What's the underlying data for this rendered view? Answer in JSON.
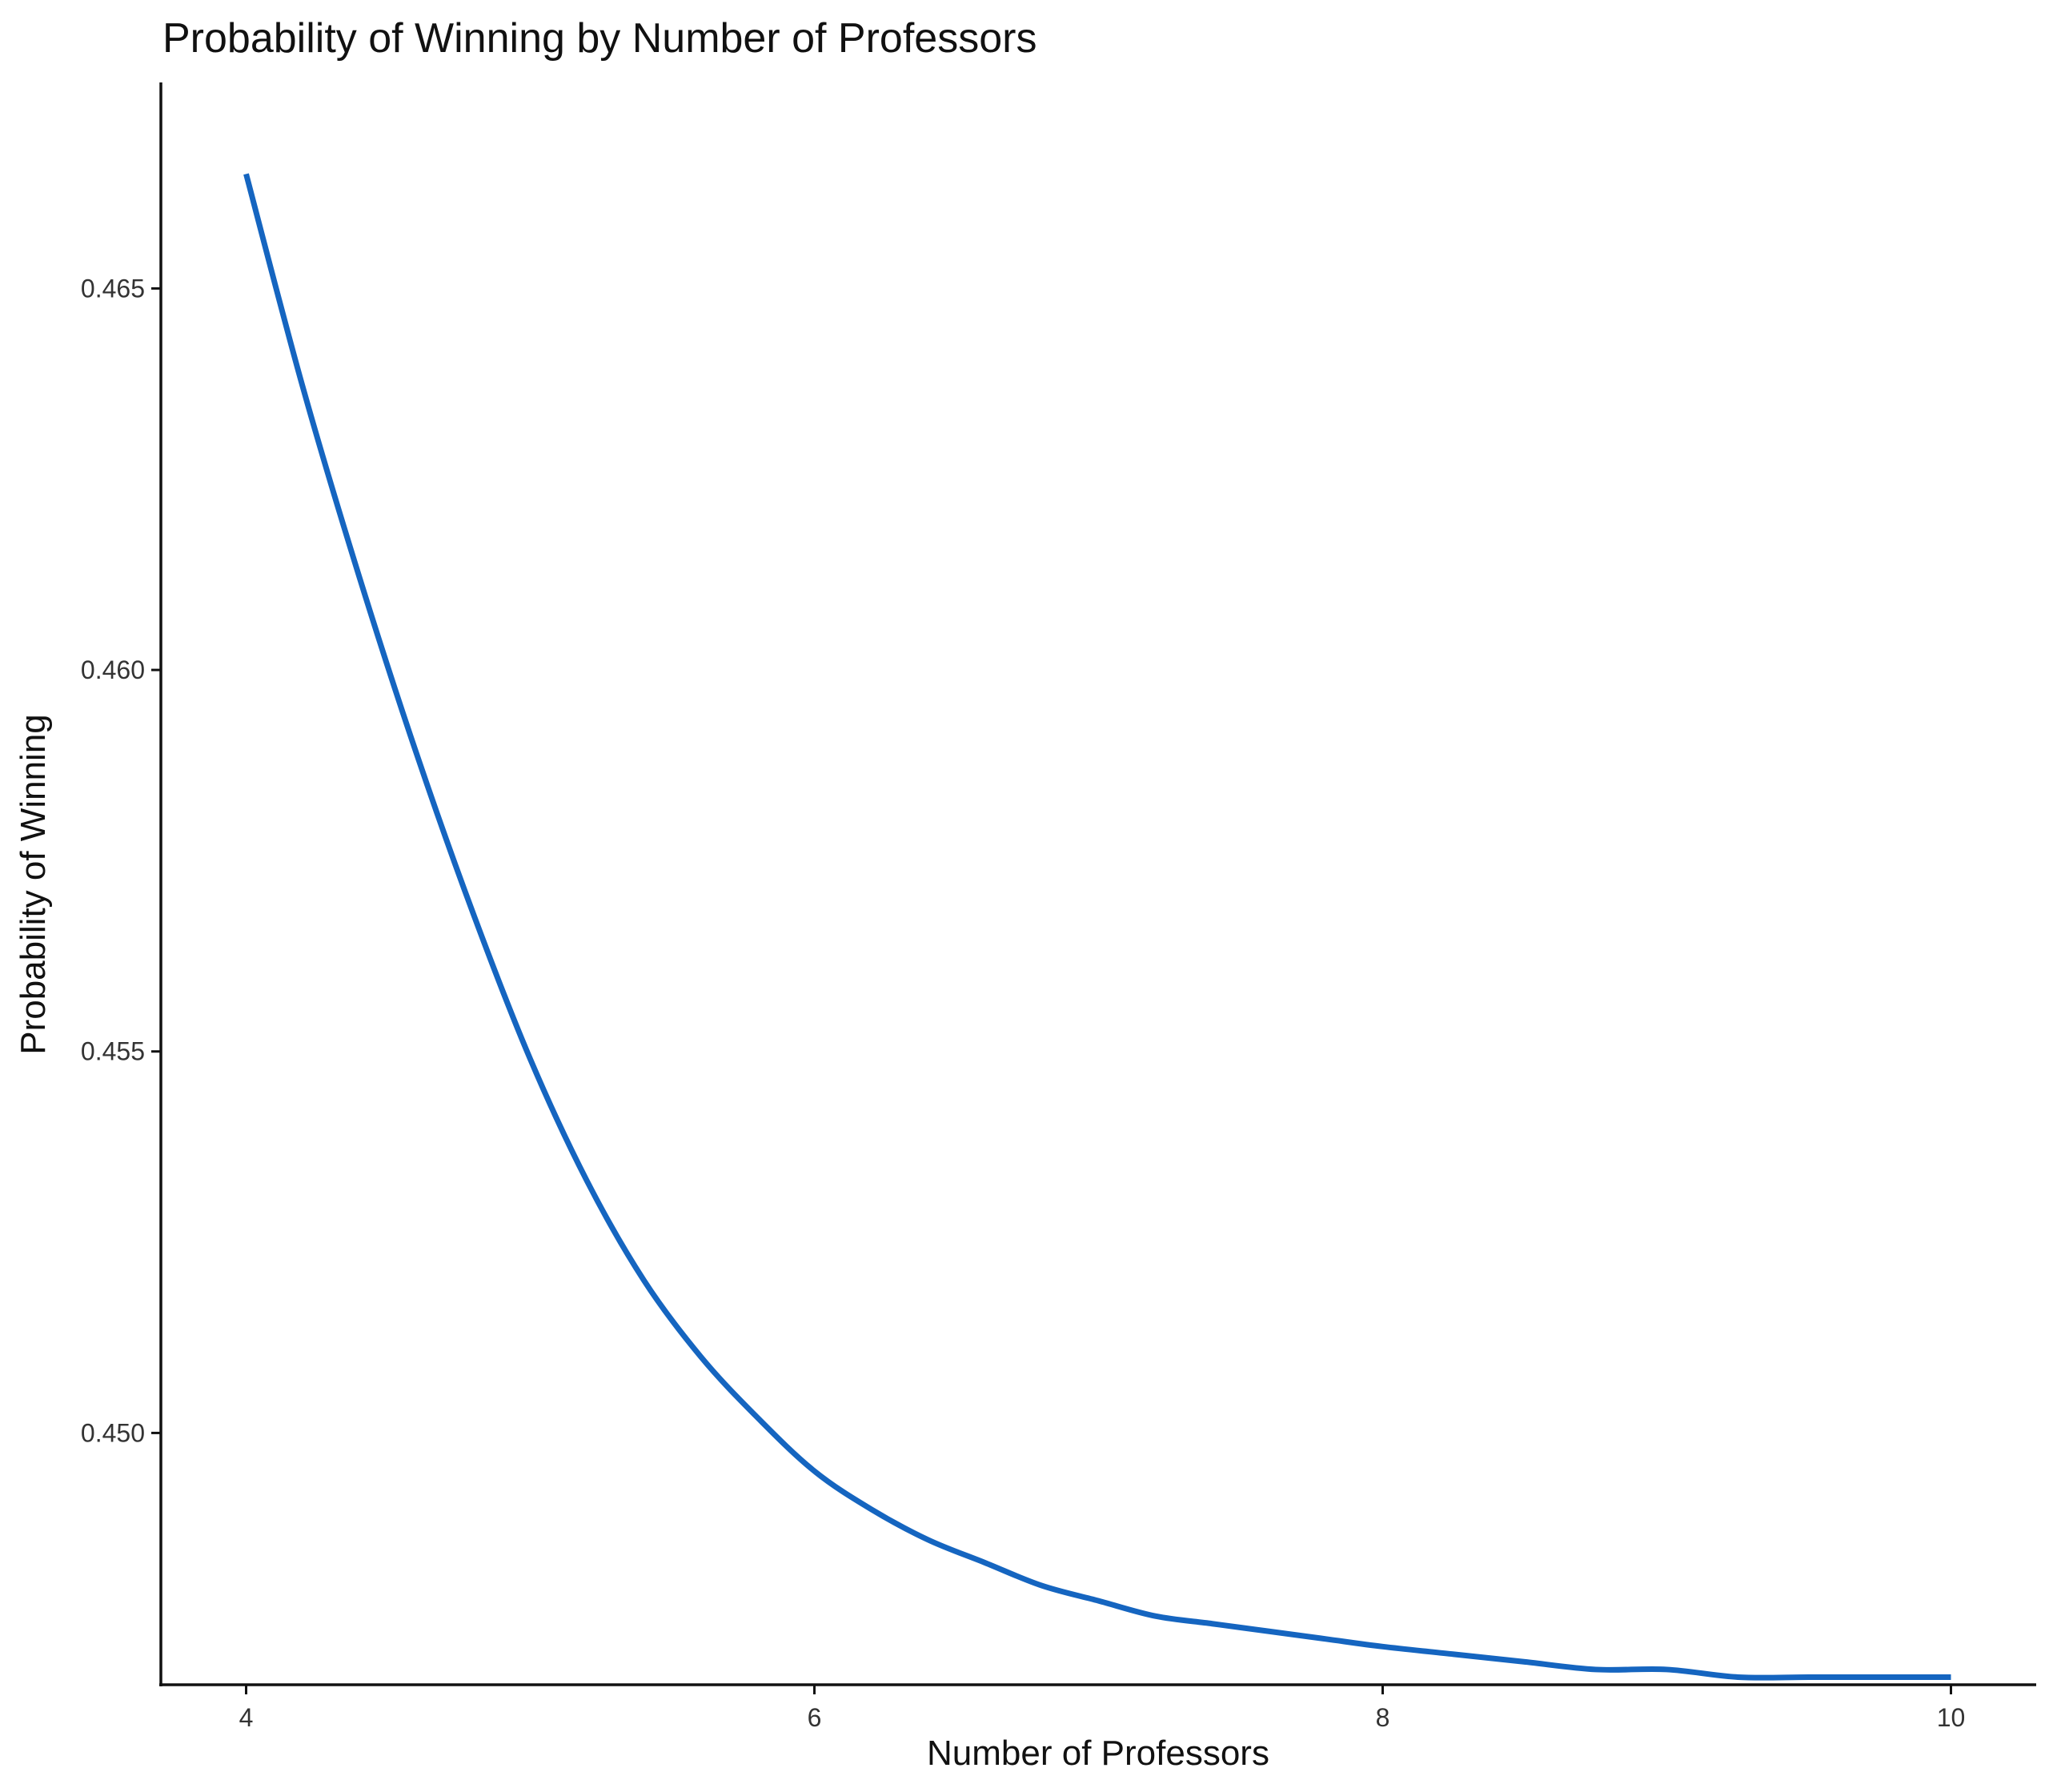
{
  "chart_data": {
    "type": "line",
    "title": "Probability of Winning by Number of Professors",
    "xlabel": "Number of Professors",
    "ylabel": "Probability of Winning",
    "xlim": [
      3.7,
      10.3
    ],
    "ylim": [
      0.4467,
      0.4677
    ],
    "x_ticks": [
      4,
      6,
      8,
      10
    ],
    "x_tick_labels": [
      "4",
      "6",
      "8",
      "10"
    ],
    "y_ticks": [
      0.45,
      0.455,
      0.46,
      0.465
    ],
    "y_tick_labels": [
      "0.450",
      "0.455",
      "0.460",
      "0.465"
    ],
    "grid": false,
    "legend": "none",
    "series": [
      {
        "color": "#1565c0",
        "x": [
          4.0,
          4.2,
          4.4,
          4.6,
          4.8,
          5.0,
          5.2,
          5.4,
          5.6,
          5.8,
          6.0,
          6.2,
          6.4,
          6.6,
          6.8,
          7.0,
          7.2,
          7.4,
          7.6,
          7.8,
          8.0,
          8.25,
          8.5,
          8.75,
          9.0,
          9.25,
          9.5,
          9.75,
          10.0
        ],
        "y": [
          0.4665,
          0.4637,
          0.4612,
          0.4589,
          0.4568,
          0.4549,
          0.4533,
          0.452,
          0.451,
          0.4502,
          0.4495,
          0.449,
          0.4486,
          0.4483,
          0.448,
          0.4478,
          0.4476,
          0.4475,
          0.4474,
          0.4473,
          0.4472,
          0.4471,
          0.447,
          0.4469,
          0.4469,
          0.4468,
          0.4468,
          0.4468,
          0.4468
        ]
      }
    ]
  }
}
